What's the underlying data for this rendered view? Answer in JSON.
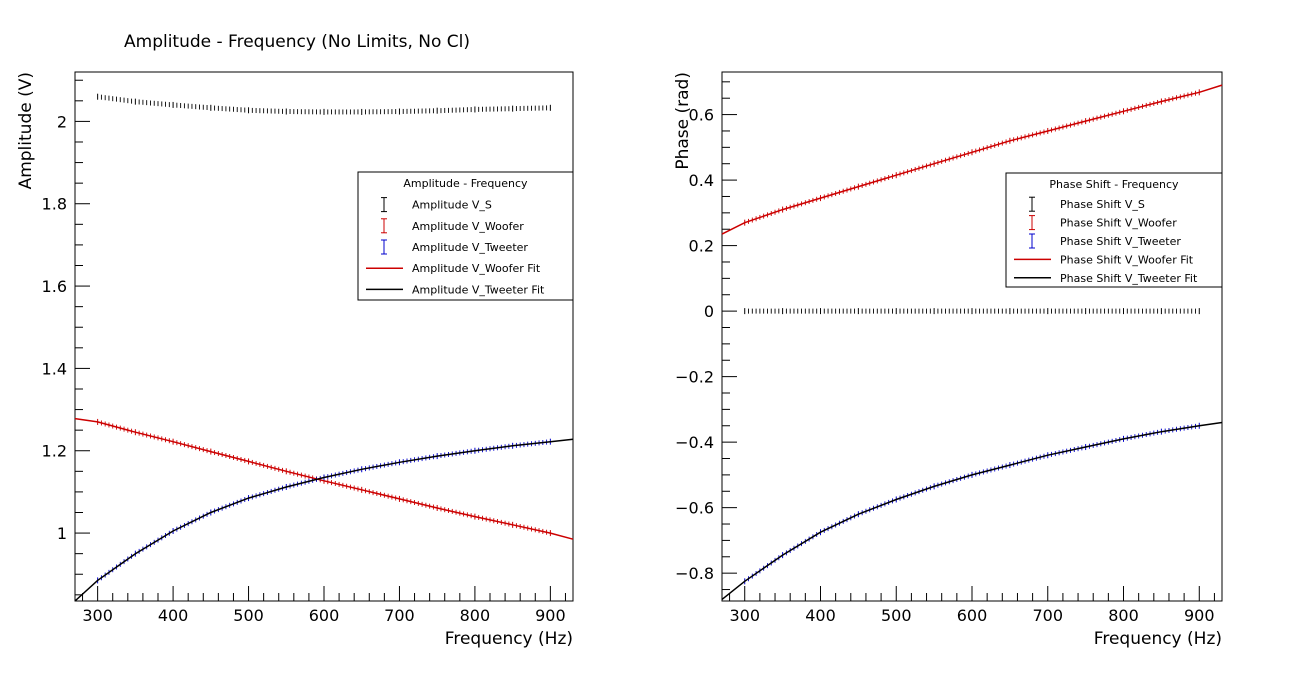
{
  "chart_data": [
    {
      "type": "scatter",
      "title": "Amplitude - Frequency (No Limits, No Cl)",
      "xlabel": "Frequency (Hz)",
      "ylabel": "Amplitude (V)",
      "xlim": [
        270,
        930
      ],
      "ylim": [
        0.835,
        2.12
      ],
      "x_ticks": [
        "300",
        "400",
        "500",
        "600",
        "700",
        "800",
        "900"
      ],
      "y_ticks": [
        "1",
        "1.2",
        "1.4",
        "1.6",
        "1.8",
        "2"
      ],
      "grid": false,
      "legend": {
        "title": "Amplitude - Frequency",
        "position": "center-right",
        "entries": [
          "Amplitude V_S",
          "Amplitude V_Woofer",
          "Amplitude V_Tweeter",
          "Amplitude V_Woofer Fit",
          "Amplitude V_Tweeter Fit"
        ]
      },
      "series": [
        {
          "name": "Amplitude V_S",
          "style": "errorbar",
          "color": "#000000",
          "x": [
            300,
            350,
            400,
            450,
            500,
            550,
            600,
            650,
            700,
            750,
            800,
            850,
            900
          ],
          "y": [
            2.06,
            2.048,
            2.04,
            2.033,
            2.027,
            2.024,
            2.023,
            2.023,
            2.024,
            2.026,
            2.029,
            2.031,
            2.033
          ]
        },
        {
          "name": "Amplitude V_Woofer",
          "style": "errorbar",
          "color": "#cc0000",
          "x": [
            300,
            350,
            400,
            450,
            500,
            550,
            600,
            650,
            700,
            750,
            800,
            850,
            900
          ],
          "y": [
            1.27,
            1.245,
            1.222,
            1.198,
            1.174,
            1.15,
            1.127,
            1.105,
            1.083,
            1.061,
            1.04,
            1.02,
            1.0
          ]
        },
        {
          "name": "Amplitude V_Tweeter",
          "style": "errorbar",
          "color": "#0000cc",
          "x": [
            300,
            350,
            400,
            450,
            500,
            550,
            600,
            650,
            700,
            750,
            800,
            850,
            900
          ],
          "y": [
            0.885,
            0.95,
            1.005,
            1.05,
            1.085,
            1.112,
            1.135,
            1.155,
            1.172,
            1.187,
            1.2,
            1.212,
            1.222
          ]
        },
        {
          "name": "Amplitude V_Woofer Fit",
          "style": "line",
          "color": "#cc0000",
          "x": [
            270,
            300,
            350,
            400,
            450,
            500,
            550,
            600,
            650,
            700,
            750,
            800,
            850,
            900,
            930
          ],
          "y": [
            1.278,
            1.27,
            1.245,
            1.222,
            1.198,
            1.174,
            1.15,
            1.127,
            1.105,
            1.083,
            1.061,
            1.04,
            1.02,
            1.0,
            0.985
          ]
        },
        {
          "name": "Amplitude V_Tweeter Fit",
          "style": "line",
          "color": "#000000",
          "x": [
            270,
            300,
            350,
            400,
            450,
            500,
            550,
            600,
            650,
            700,
            750,
            800,
            850,
            900,
            930
          ],
          "y": [
            0.835,
            0.885,
            0.95,
            1.005,
            1.05,
            1.085,
            1.112,
            1.135,
            1.155,
            1.172,
            1.187,
            1.2,
            1.212,
            1.222,
            1.228
          ]
        }
      ]
    },
    {
      "type": "scatter",
      "title": "",
      "xlabel": "Frequency (Hz)",
      "ylabel": "Phase (rad)",
      "xlim": [
        270,
        930
      ],
      "ylim": [
        -0.885,
        0.73
      ],
      "x_ticks": [
        "300",
        "400",
        "500",
        "600",
        "700",
        "800",
        "900"
      ],
      "y_ticks": [
        "0.6",
        "0.4",
        "0.2",
        "0",
        "−0.2",
        "−0.4",
        "−0.6",
        "−0.8"
      ],
      "grid": false,
      "legend": {
        "title": "Phase Shift - Frequency",
        "position": "center-right",
        "entries": [
          "Phase Shift V_S",
          "Phase Shift V_Woofer",
          "Phase Shift V_Tweeter",
          "Phase Shift V_Woofer Fit",
          "Phase Shift V_Tweeter Fit"
        ]
      },
      "series": [
        {
          "name": "Phase Shift V_S",
          "style": "errorbar",
          "color": "#000000",
          "x": [
            300,
            350,
            400,
            450,
            500,
            550,
            600,
            650,
            700,
            750,
            800,
            850,
            900
          ],
          "y": [
            0,
            0,
            0,
            0,
            0,
            0,
            0,
            0,
            0,
            0,
            0,
            0,
            0
          ]
        },
        {
          "name": "Phase Shift V_Woofer",
          "style": "errorbar",
          "color": "#cc0000",
          "x": [
            300,
            350,
            400,
            450,
            500,
            550,
            600,
            650,
            700,
            750,
            800,
            850,
            900
          ],
          "y": [
            0.27,
            0.31,
            0.345,
            0.38,
            0.415,
            0.45,
            0.485,
            0.52,
            0.55,
            0.58,
            0.61,
            0.64,
            0.668
          ]
        },
        {
          "name": "Phase Shift V_Tweeter",
          "style": "errorbar",
          "color": "#0000cc",
          "x": [
            300,
            350,
            400,
            450,
            500,
            550,
            600,
            650,
            700,
            750,
            800,
            850,
            900
          ],
          "y": [
            -0.825,
            -0.745,
            -0.675,
            -0.62,
            -0.575,
            -0.535,
            -0.5,
            -0.47,
            -0.44,
            -0.415,
            -0.39,
            -0.368,
            -0.35
          ]
        },
        {
          "name": "Phase Shift V_Woofer Fit",
          "style": "line",
          "color": "#cc0000",
          "x": [
            270,
            300,
            350,
            400,
            450,
            500,
            550,
            600,
            650,
            700,
            750,
            800,
            850,
            900,
            930
          ],
          "y": [
            0.235,
            0.27,
            0.31,
            0.345,
            0.38,
            0.415,
            0.45,
            0.485,
            0.52,
            0.55,
            0.58,
            0.61,
            0.64,
            0.668,
            0.69
          ]
        },
        {
          "name": "Phase Shift V_Tweeter Fit",
          "style": "line",
          "color": "#000000",
          "x": [
            270,
            300,
            350,
            400,
            450,
            500,
            550,
            600,
            650,
            700,
            750,
            800,
            850,
            900,
            930
          ],
          "y": [
            -0.88,
            -0.825,
            -0.745,
            -0.675,
            -0.62,
            -0.575,
            -0.535,
            -0.5,
            -0.47,
            -0.44,
            -0.415,
            -0.39,
            -0.368,
            -0.35,
            -0.34
          ]
        }
      ]
    }
  ]
}
